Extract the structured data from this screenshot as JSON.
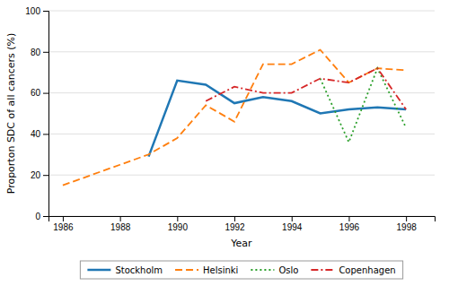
{
  "chart_data": {
    "type": "line",
    "xlabel": "Year",
    "ylabel": "Proporton SDC of all cancers (%)",
    "xlim": [
      1985.5,
      1999.0
    ],
    "ylim": [
      0,
      100
    ],
    "xticks": [
      1986,
      1988,
      1990,
      1992,
      1994,
      1996,
      1998
    ],
    "yticks": [
      0,
      20,
      40,
      60,
      80,
      100
    ],
    "grid": true,
    "legend": "bottom",
    "series": [
      {
        "name": "Stockholm",
        "line_style": "solid",
        "x": [
          1989,
          1990,
          1991,
          1992,
          1993,
          1994,
          1995,
          1996,
          1997,
          1998
        ],
        "values": [
          29,
          66,
          64,
          55,
          58,
          56,
          50,
          52,
          53,
          52
        ]
      },
      {
        "name": "Helsinki",
        "line_style": "dashed",
        "x": [
          1986,
          1987,
          1988,
          1989,
          1990,
          1991,
          1992,
          1993,
          1994,
          1995,
          1996,
          1997,
          1998
        ],
        "values": [
          15,
          20,
          25,
          30,
          38,
          54,
          46,
          74,
          74,
          81,
          65,
          72,
          71
        ]
      },
      {
        "name": "Oslo",
        "line_style": "dotted",
        "x": [
          1995,
          1996,
          1997,
          1998
        ],
        "values": [
          67,
          36,
          72,
          43
        ]
      },
      {
        "name": "Copenhagen",
        "line_style": "dashdot",
        "x": [
          1991,
          1992,
          1993,
          1994,
          1995,
          1996,
          1997,
          1998
        ],
        "values": [
          56,
          63,
          60,
          60,
          67,
          65,
          72,
          52
        ]
      }
    ]
  }
}
